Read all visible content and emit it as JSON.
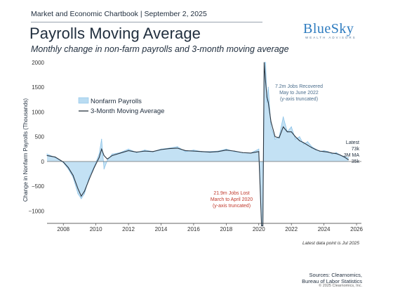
{
  "header": {
    "chartbook": "Market and Economic Chartbook | September 2, 2025",
    "title": "Payrolls Moving Average",
    "subtitle": "Monthly change in non-farm payrolls and 3-month moving average"
  },
  "logo": {
    "main": "BlueSky",
    "sub": "WEALTH ADVISORS"
  },
  "colors": {
    "bar": "#b9dcf2",
    "bar_stroke": "#8cc3e8",
    "line": "#2a3540",
    "lost": "#c0392b",
    "recovered": "#4a6d8c",
    "title": "#1f2d3d"
  },
  "footer": {
    "note": "Latest data point is Jul 2025",
    "sources_line1": "Sources: Clearnomics,",
    "sources_line2": "Bureau of Labor Statistics",
    "copyright": "© 2025 Clearnomics, Inc."
  },
  "chart_data": {
    "type": "area",
    "title": "Payrolls Moving Average",
    "ylabel": "Change in Nonfarm Payrolls (Thousands)",
    "xlabel": "",
    "ylim": [
      -1250,
      2000
    ],
    "xlim": [
      2007.0,
      2026.3
    ],
    "y_ticks": [
      -1000,
      -500,
      0,
      500,
      1000,
      1500,
      2000
    ],
    "y_tick_labels": [
      "−1000",
      "−500",
      "0",
      "500",
      "1000",
      "1500",
      "2000"
    ],
    "x_ticks": [
      2008,
      2010,
      2012,
      2014,
      2016,
      2018,
      2020,
      2022,
      2024,
      2026
    ],
    "legend": {
      "placement": "upper-left",
      "entries": [
        "Nonfarm Payrolls",
        "3-Month Moving Average"
      ]
    },
    "grid": false,
    "annotations": {
      "recovered": [
        "7.2m Jobs Recovered",
        "May to June 2022",
        "(y-axis truncated)"
      ],
      "lost": [
        "21.9m Jobs Lost",
        "March to April 2020",
        "(y-axis truncated)"
      ],
      "latest": [
        "Latest",
        "73k",
        "3M MA",
        "35k"
      ]
    },
    "series": [
      {
        "name": "Nonfarm Payrolls",
        "x": [
          2007.0,
          2007.5,
          2008.0,
          2008.3,
          2008.6,
          2008.9,
          2009.1,
          2009.3,
          2009.6,
          2009.9,
          2010.2,
          2010.35,
          2010.5,
          2010.7,
          2011.0,
          2011.5,
          2012.0,
          2012.5,
          2013.0,
          2013.5,
          2014.0,
          2014.5,
          2015.0,
          2015.5,
          2016.0,
          2016.5,
          2017.0,
          2017.5,
          2018.0,
          2018.5,
          2019.0,
          2019.5,
          2020.0,
          2020.17,
          2020.25,
          2020.33,
          2020.42,
          2020.5,
          2020.58,
          2020.75,
          2021.0,
          2021.25,
          2021.5,
          2021.75,
          2022.0,
          2022.25,
          2022.5,
          2022.75,
          2023.0,
          2023.25,
          2023.5,
          2023.75,
          2024.0,
          2024.25,
          2024.5,
          2024.75,
          2025.0,
          2025.25,
          2025.5
        ],
        "values": [
          150,
          80,
          -20,
          -150,
          -320,
          -650,
          -750,
          -650,
          -300,
          -100,
          150,
          450,
          -150,
          20,
          150,
          180,
          250,
          180,
          230,
          200,
          250,
          270,
          300,
          200,
          230,
          200,
          200,
          210,
          250,
          200,
          180,
          170,
          250,
          -1300,
          -1300,
          2000,
          2000,
          1200,
          1500,
          700,
          450,
          500,
          900,
          600,
          700,
          450,
          500,
          350,
          400,
          300,
          250,
          200,
          220,
          200,
          150,
          180,
          130,
          100,
          73
        ]
      },
      {
        "name": "3-Month Moving Average",
        "x": [
          2007.0,
          2007.5,
          2008.0,
          2008.3,
          2008.6,
          2008.9,
          2009.1,
          2009.3,
          2009.6,
          2009.9,
          2010.2,
          2010.35,
          2010.5,
          2010.7,
          2011.0,
          2011.5,
          2012.0,
          2012.5,
          2013.0,
          2013.5,
          2014.0,
          2014.5,
          2015.0,
          2015.5,
          2016.0,
          2016.5,
          2017.0,
          2017.5,
          2018.0,
          2018.5,
          2019.0,
          2019.5,
          2020.0,
          2020.17,
          2020.25,
          2020.33,
          2020.42,
          2020.5,
          2020.58,
          2020.75,
          2021.0,
          2021.25,
          2021.5,
          2021.75,
          2022.0,
          2022.25,
          2022.5,
          2022.75,
          2023.0,
          2023.25,
          2023.5,
          2023.75,
          2024.0,
          2024.25,
          2024.5,
          2024.75,
          2025.0,
          2025.25,
          2025.5
        ],
        "values": [
          120,
          90,
          -10,
          -120,
          -280,
          -550,
          -700,
          -600,
          -350,
          -120,
          80,
          250,
          120,
          50,
          120,
          170,
          220,
          190,
          210,
          200,
          240,
          260,
          270,
          220,
          210,
          200,
          190,
          200,
          230,
          210,
          180,
          170,
          200,
          -1300,
          -1300,
          2000,
          1600,
          1300,
          1200,
          800,
          500,
          480,
          700,
          600,
          600,
          500,
          420,
          380,
          330,
          280,
          240,
          210,
          200,
          190,
          170,
          160,
          130,
          90,
          35
        ]
      }
    ]
  }
}
